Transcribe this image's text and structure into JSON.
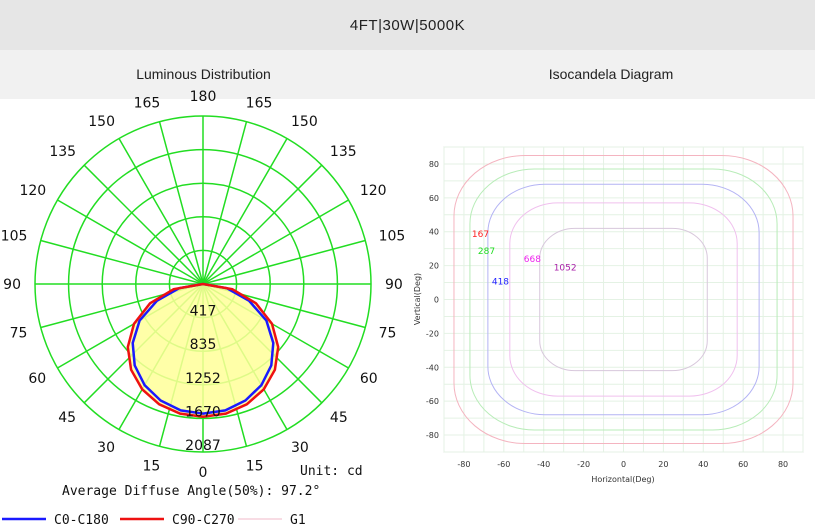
{
  "header": {
    "title": "4FT|30W|5000K",
    "left_subtitle": "Luminous Distribution",
    "right_subtitle": "Isocandela Diagram"
  },
  "colors": {
    "grid": "#22dd22",
    "c0": "#1a1aff",
    "c90": "#ee1111",
    "fill": "#ffff99",
    "g1": "#f0b8c8"
  },
  "chart_data": [
    {
      "type": "polar",
      "unit_label": "Unit: cd",
      "average_angle_text": "Average Diffuse Angle(50%): 97.2°",
      "angle_labels_left": [
        "0",
        "15",
        "30",
        "45",
        "60",
        "75",
        "90",
        "105",
        "120",
        "135",
        "150",
        "165",
        "180"
      ],
      "angle_labels_right": [
        "15",
        "30",
        "45",
        "60",
        "75",
        "90",
        "105",
        "120",
        "135",
        "150",
        "165"
      ],
      "ring_values": [
        417,
        835,
        1252,
        1670,
        2087
      ],
      "rmax": 2087,
      "legend": [
        "C0-C180",
        "C90-C270",
        "G1"
      ],
      "series": [
        {
          "name": "C0-C180",
          "points": [
            [
              0,
              1610
            ],
            [
              10,
              1595
            ],
            [
              20,
              1540
            ],
            [
              30,
              1450
            ],
            [
              40,
              1320
            ],
            [
              50,
              1140
            ],
            [
              60,
              910
            ],
            [
              70,
              610
            ],
            [
              80,
              300
            ],
            [
              90,
              0
            ]
          ]
        },
        {
          "name": "C90-C270",
          "points": [
            [
              0,
              1650
            ],
            [
              10,
              1635
            ],
            [
              20,
              1590
            ],
            [
              30,
              1510
            ],
            [
              40,
              1390
            ],
            [
              50,
              1220
            ],
            [
              60,
              990
            ],
            [
              70,
              700
            ],
            [
              80,
              370
            ],
            [
              90,
              0
            ]
          ]
        }
      ]
    },
    {
      "type": "contour",
      "xlabel": "Horizontal(Deg)",
      "ylabel": "Vertical(Deg)",
      "xlim": [
        -90,
        90
      ],
      "ylim": [
        -90,
        90
      ],
      "xticks": [
        -80,
        -60,
        -40,
        -20,
        0,
        20,
        40,
        60,
        80
      ],
      "yticks": [
        80,
        60,
        40,
        20,
        0,
        -20,
        -40,
        -60,
        -80
      ],
      "grid": true,
      "levels": [
        {
          "value": "167",
          "color": "#ff2222",
          "line": "#f4b4c0",
          "half_extent": 85,
          "label_pos": [
            -76,
            37
          ]
        },
        {
          "value": "287",
          "color": "#22dd22",
          "line": "#b8ecb8",
          "half_extent": 77,
          "label_pos": [
            -73,
            27
          ]
        },
        {
          "value": "418",
          "color": "#2222ff",
          "line": "#b4b4f4",
          "half_extent": 68,
          "label_pos": [
            -66,
            9
          ]
        },
        {
          "value": "668",
          "color": "#ee22ee",
          "line": "#f0c0ee",
          "half_extent": 57,
          "label_pos": [
            -50,
            22
          ]
        },
        {
          "value": "1052",
          "color": "#aa22aa",
          "line": "#d8c8dc",
          "half_extent": 42,
          "label_pos": [
            -35,
            17
          ]
        }
      ]
    }
  ]
}
